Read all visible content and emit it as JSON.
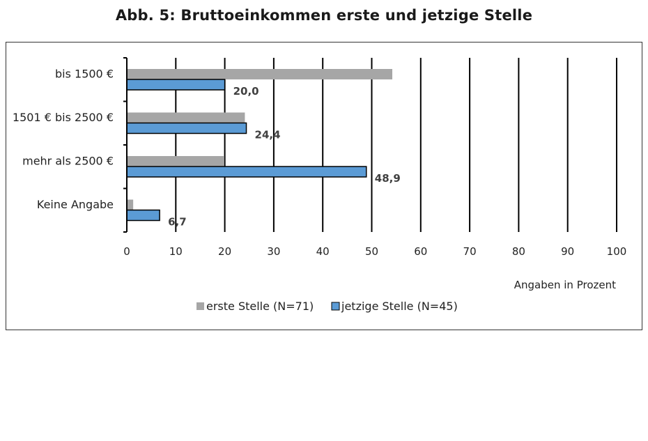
{
  "chart_data": {
    "type": "bar",
    "orientation": "horizontal",
    "title": "Abb. 5: Bruttoeinkommen erste und jetzige Stelle",
    "categories": [
      "bis 1500 €",
      "1501 € bis 2500 €",
      "mehr als 2500 €",
      "Keine Angabe"
    ],
    "series": [
      {
        "name": "erste Stelle (N=71)",
        "values": [
          54.2,
          24.1,
          19.9,
          1.3
        ],
        "color": "#a6a6a6",
        "show_labels": false
      },
      {
        "name": "jetzige Stelle (N=45)",
        "values": [
          20.0,
          24.4,
          48.9,
          6.7
        ],
        "color": "#5b9bd5",
        "show_labels": true
      }
    ],
    "data_labels": [
      "20,0",
      "24,4",
      "48,9",
      "6,7"
    ],
    "xlim": [
      0,
      100
    ],
    "xticks": [
      "0",
      "10",
      "20",
      "30",
      "40",
      "50",
      "60",
      "70",
      "80",
      "90",
      "100"
    ],
    "xlabel": "Angaben in Prozent",
    "grid": "vertical",
    "legend_position": "bottom"
  }
}
